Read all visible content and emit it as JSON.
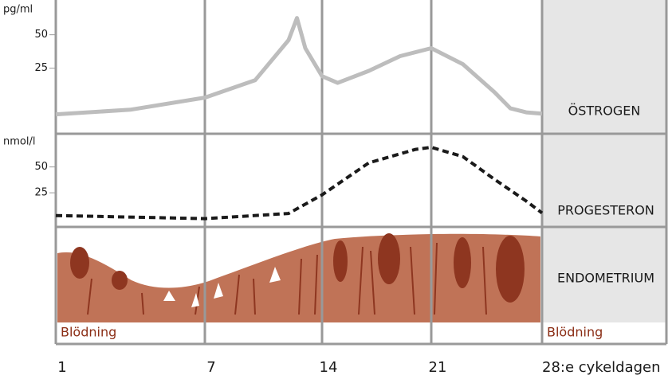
{
  "chart_data": [
    {
      "type": "line",
      "y_label": "pg/ml",
      "ylim": [
        -24,
        73
      ],
      "yticks": [
        25,
        50
      ],
      "x": [
        1,
        4,
        7,
        10,
        12,
        12.5,
        13,
        14,
        15,
        17,
        19,
        21,
        23,
        25,
        26,
        27,
        28
      ],
      "series": [
        {
          "name": "ÖSTROGEN",
          "color": "#bdbdbd",
          "dashed": false,
          "values": [
            -9.5,
            -6,
            3,
            16,
            46,
            62.5,
            40,
            19,
            14,
            23,
            34,
            40,
            28,
            7,
            -5,
            -8,
            -9
          ]
        }
      ]
    },
    {
      "type": "line",
      "y_label": "nmol/l",
      "ylim": [
        -8,
        79
      ],
      "yticks": [
        25,
        50
      ],
      "x": [
        1,
        7,
        12,
        14,
        17,
        20,
        21,
        23,
        25,
        27,
        28
      ],
      "series": [
        {
          "name": "PROGESTERON",
          "color": "#1a1a1a",
          "dashed": true,
          "values": [
            3,
            0,
            5,
            23,
            54,
            67,
            69,
            60,
            38,
            17,
            5.5
          ]
        }
      ],
      "xlim": [
        1,
        28
      ],
      "xticks": [
        1,
        7,
        14,
        21,
        {
          "value": 28,
          "label": "28:e cykeldagen"
        }
      ]
    }
  ],
  "endometrium": {
    "label": "ENDOMETRIUM",
    "bleeding_label_start": "Blödning",
    "bleeding_label_end": "Blödning"
  }
}
